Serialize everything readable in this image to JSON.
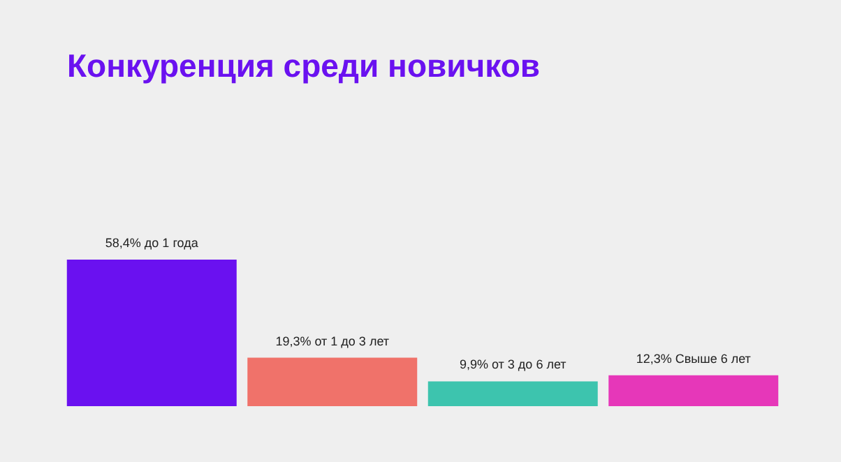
{
  "chart_data": {
    "type": "bar",
    "title": "Конкуренция среди новичков",
    "categories": [
      null,
      null,
      null,
      null
    ],
    "values": [
      58.4,
      19.3,
      9.9,
      12.3
    ],
    "colors": [
      "#6a11f0",
      "#f0726a",
      "#3dc4ae",
      "#e637b9"
    ],
    "value_labels": [
      "58,4% до 1 года",
      "19,3% от 1 до 3 лет",
      "9,9% от 3 до 6 лет",
      "12,3% Свыше 6 лет"
    ]
  }
}
